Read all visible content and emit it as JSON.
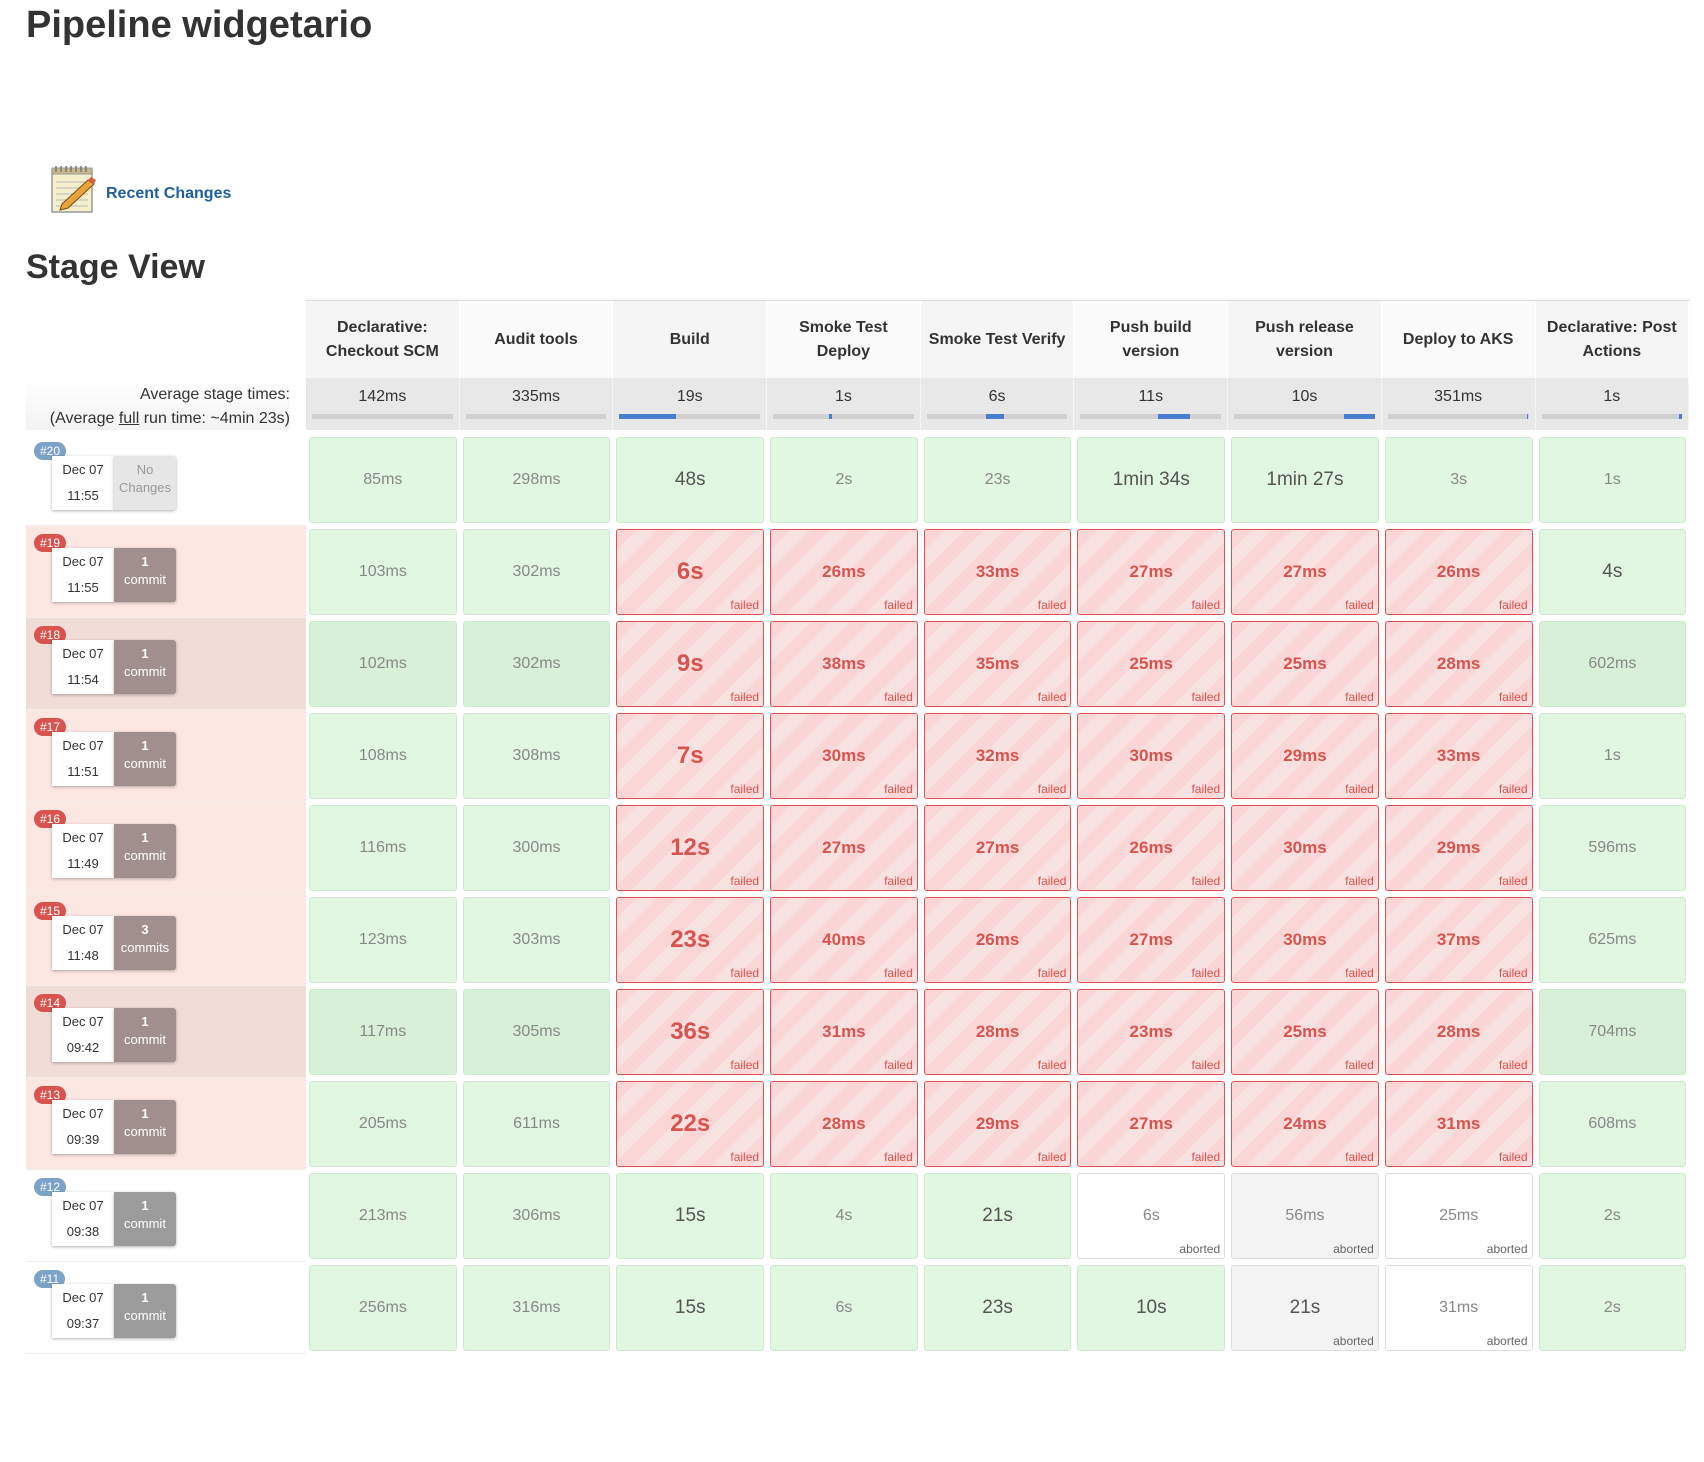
{
  "page": {
    "title": "Pipeline widgetario",
    "stage_view_title": "Stage View"
  },
  "recent_changes": {
    "label": "Recent Changes",
    "icon": "notepad-icon"
  },
  "stages": [
    {
      "name": "Declarative: Checkout SCM",
      "avg": "142ms",
      "bar": [
        0,
        0
      ]
    },
    {
      "name": "Audit tools",
      "avg": "335ms",
      "bar": [
        0,
        0
      ]
    },
    {
      "name": "Build",
      "avg": "19s",
      "bar": [
        0,
        0.4
      ]
    },
    {
      "name": "Smoke Test Deploy",
      "avg": "1s",
      "bar": [
        0.4,
        0.42
      ]
    },
    {
      "name": "Smoke Test Verify",
      "avg": "6s",
      "bar": [
        0.42,
        0.55
      ]
    },
    {
      "name": "Push build version",
      "avg": "11s",
      "bar": [
        0.55,
        0.78
      ]
    },
    {
      "name": "Push release version",
      "avg": "10s",
      "bar": [
        0.78,
        1.0
      ]
    },
    {
      "name": "Deploy to AKS",
      "avg": "351ms",
      "bar": [
        0.99,
        1.0
      ]
    },
    {
      "name": "Declarative: Post Actions",
      "avg": "1s",
      "bar": [
        0.98,
        1.0
      ]
    }
  ],
  "average": {
    "label_prefix": "Average stage times:",
    "full_prefix": "(Average ",
    "full_word": "full",
    "full_suffix": " run time: ~4min 23s)"
  },
  "labels": {
    "failed": "failed",
    "aborted": "aborted"
  },
  "colors": {
    "success": "#e1f7e1",
    "failed": "#d9534f",
    "progress": "#4a7fd0"
  },
  "runs": [
    {
      "id": "#20",
      "status": "ok",
      "date": "Dec 07",
      "time": "11:55",
      "changes_n": "No",
      "changes_w": "Changes",
      "changes_style": "none",
      "cells": [
        [
          "s",
          "85ms"
        ],
        [
          "s",
          "298ms"
        ],
        [
          "sb",
          "48s"
        ],
        [
          "s",
          "2s"
        ],
        [
          "s",
          "23s"
        ],
        [
          "sb",
          "1min 34s"
        ],
        [
          "sb",
          "1min 27s"
        ],
        [
          "s",
          "3s"
        ],
        [
          "s",
          "1s"
        ]
      ]
    },
    {
      "id": "#19",
      "status": "failed",
      "date": "Dec 07",
      "time": "11:55",
      "changes_n": "1",
      "changes_w": "commit",
      "changes_style": "brown",
      "cells": [
        [
          "s",
          "103ms"
        ],
        [
          "s",
          "302ms"
        ],
        [
          "fb",
          "6s"
        ],
        [
          "f",
          "26ms"
        ],
        [
          "f",
          "33ms"
        ],
        [
          "f",
          "27ms"
        ],
        [
          "f",
          "27ms"
        ],
        [
          "f",
          "26ms"
        ],
        [
          "sb",
          "4s"
        ]
      ]
    },
    {
      "id": "#18",
      "status": "failed dark",
      "date": "Dec 07",
      "time": "11:54",
      "changes_n": "1",
      "changes_w": "commit",
      "changes_style": "brown",
      "cells": [
        [
          "s",
          "102ms"
        ],
        [
          "s",
          "302ms"
        ],
        [
          "fb",
          "9s"
        ],
        [
          "f",
          "38ms"
        ],
        [
          "f",
          "35ms"
        ],
        [
          "f",
          "25ms"
        ],
        [
          "f",
          "25ms"
        ],
        [
          "f",
          "28ms"
        ],
        [
          "s",
          "602ms"
        ]
      ]
    },
    {
      "id": "#17",
      "status": "failed",
      "date": "Dec 07",
      "time": "11:51",
      "changes_n": "1",
      "changes_w": "commit",
      "changes_style": "brown",
      "cells": [
        [
          "s",
          "108ms"
        ],
        [
          "s",
          "308ms"
        ],
        [
          "fb",
          "7s"
        ],
        [
          "f",
          "30ms"
        ],
        [
          "f",
          "32ms"
        ],
        [
          "f",
          "30ms"
        ],
        [
          "f",
          "29ms"
        ],
        [
          "f",
          "33ms"
        ],
        [
          "s",
          "1s"
        ]
      ]
    },
    {
      "id": "#16",
      "status": "failed",
      "date": "Dec 07",
      "time": "11:49",
      "changes_n": "1",
      "changes_w": "commit",
      "changes_style": "brown",
      "cells": [
        [
          "s",
          "116ms"
        ],
        [
          "s",
          "300ms"
        ],
        [
          "fb",
          "12s"
        ],
        [
          "f",
          "27ms"
        ],
        [
          "f",
          "27ms"
        ],
        [
          "f",
          "26ms"
        ],
        [
          "f",
          "30ms"
        ],
        [
          "f",
          "29ms"
        ],
        [
          "s",
          "596ms"
        ]
      ]
    },
    {
      "id": "#15",
      "status": "failed",
      "date": "Dec 07",
      "time": "11:48",
      "changes_n": "3",
      "changes_w": "commits",
      "changes_style": "brown",
      "cells": [
        [
          "s",
          "123ms"
        ],
        [
          "s",
          "303ms"
        ],
        [
          "fb",
          "23s"
        ],
        [
          "f",
          "40ms"
        ],
        [
          "f",
          "26ms"
        ],
        [
          "f",
          "27ms"
        ],
        [
          "f",
          "30ms"
        ],
        [
          "f",
          "37ms"
        ],
        [
          "s",
          "625ms"
        ]
      ]
    },
    {
      "id": "#14",
      "status": "failed dark",
      "date": "Dec 07",
      "time": "09:42",
      "changes_n": "1",
      "changes_w": "commit",
      "changes_style": "brown",
      "cells": [
        [
          "s",
          "117ms"
        ],
        [
          "s",
          "305ms"
        ],
        [
          "fb",
          "36s"
        ],
        [
          "f",
          "31ms"
        ],
        [
          "f",
          "28ms"
        ],
        [
          "f",
          "23ms"
        ],
        [
          "f",
          "25ms"
        ],
        [
          "f",
          "28ms"
        ],
        [
          "s",
          "704ms"
        ]
      ]
    },
    {
      "id": "#13",
      "status": "failed",
      "date": "Dec 07",
      "time": "09:39",
      "changes_n": "1",
      "changes_w": "commit",
      "changes_style": "brown",
      "cells": [
        [
          "s",
          "205ms"
        ],
        [
          "s",
          "611ms"
        ],
        [
          "fb",
          "22s"
        ],
        [
          "f",
          "28ms"
        ],
        [
          "f",
          "29ms"
        ],
        [
          "f",
          "27ms"
        ],
        [
          "f",
          "24ms"
        ],
        [
          "f",
          "31ms"
        ],
        [
          "s",
          "608ms"
        ]
      ]
    },
    {
      "id": "#12",
      "status": "ok",
      "date": "Dec 07",
      "time": "09:38",
      "changes_n": "1",
      "changes_w": "commit",
      "changes_style": "gray",
      "cells": [
        [
          "s",
          "213ms"
        ],
        [
          "s",
          "306ms"
        ],
        [
          "sb",
          "15s"
        ],
        [
          "s",
          "4s"
        ],
        [
          "sb",
          "21s"
        ],
        [
          "a",
          "6s"
        ],
        [
          "ag",
          "56ms"
        ],
        [
          "a",
          "25ms"
        ],
        [
          "s",
          "2s"
        ]
      ]
    },
    {
      "id": "#11",
      "status": "ok",
      "date": "Dec 07",
      "time": "09:37",
      "changes_n": "1",
      "changes_w": "commit",
      "changes_style": "gray",
      "cells": [
        [
          "s",
          "256ms"
        ],
        [
          "s",
          "316ms"
        ],
        [
          "sb",
          "15s"
        ],
        [
          "s",
          "6s"
        ],
        [
          "sb",
          "23s"
        ],
        [
          "sb",
          "10s"
        ],
        [
          "agd",
          "21s"
        ],
        [
          "a",
          "31ms"
        ],
        [
          "s",
          "2s"
        ]
      ]
    }
  ]
}
